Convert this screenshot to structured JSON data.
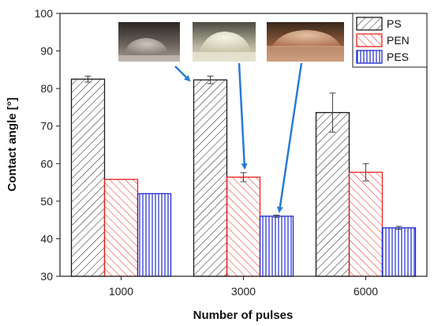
{
  "chart_data": {
    "type": "bar",
    "title": "",
    "xlabel": "Number of pulses",
    "ylabel": "Contact angle [°]",
    "ylim": [
      30,
      100
    ],
    "yticks": [
      30,
      40,
      50,
      60,
      70,
      80,
      90,
      100
    ],
    "categories": [
      "1000",
      "3000",
      "6000"
    ],
    "series": [
      {
        "name": "PS",
        "values": [
          82.5,
          82.3,
          73.6
        ],
        "errors": [
          0.8,
          1.0,
          5.2
        ],
        "color": "#1a1a1a",
        "pattern": "diagonal-right"
      },
      {
        "name": "PEN",
        "values": [
          55.8,
          56.4,
          57.7
        ],
        "errors": [
          0.0,
          1.2,
          2.3
        ],
        "color": "#e8231f",
        "pattern": "diagonal-left"
      },
      {
        "name": "PES",
        "values": [
          52.0,
          46.0,
          42.9
        ],
        "errors": [
          0.0,
          0.3,
          0.4
        ],
        "color": "#1f2ad1",
        "pattern": "vertical"
      }
    ],
    "legend": "top-right",
    "grid": false,
    "annotations": [
      {
        "type": "droplet-photo",
        "sample": "PS"
      },
      {
        "type": "droplet-photo",
        "sample": "PEN"
      },
      {
        "type": "droplet-photo",
        "sample": "PES"
      }
    ],
    "arrow_color": "#2a7bd4"
  }
}
